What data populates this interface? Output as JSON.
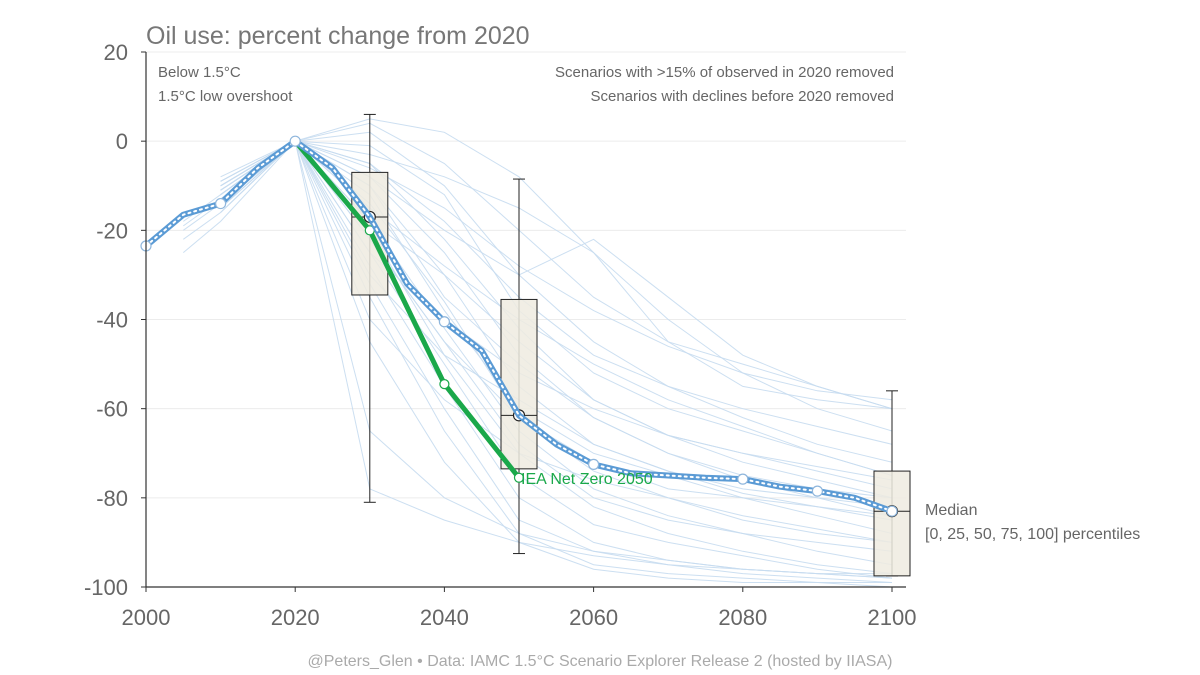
{
  "chart_data": {
    "type": "line",
    "title": "Oil use: percent change from 2020",
    "xlim": [
      2000,
      2100
    ],
    "ylim": [
      -100,
      20
    ],
    "x_ticks": [
      "2000",
      "2020",
      "2040",
      "2060",
      "2080",
      "2100"
    ],
    "y_ticks": [
      "20",
      "0",
      "-20",
      "-40",
      "-60",
      "-80",
      "-100"
    ],
    "grid": "horizontal",
    "notes_left": [
      "Below 1.5°C",
      "1.5°C low overshoot"
    ],
    "notes_right": [
      "Scenarios with >15% of observed in 2020 removed",
      "Scenarios with declines before 2020 removed"
    ],
    "median_label": "Median",
    "percentile_label": "[0, 25, 50, 75, 100] percentiles",
    "credit": "@Peters_Glen  •  Data: IAMC 1.5°C Scenario Explorer Release 2 (hosted by IIASA)",
    "colors": {
      "median": "#5b9bd5",
      "iea": "#1aa84a",
      "scenarios": "#c6dcf0",
      "box": "#efebe1"
    },
    "median": {
      "x": [
        2000,
        2005,
        2010,
        2015,
        2020,
        2025,
        2030,
        2035,
        2040,
        2045,
        2050,
        2055,
        2060,
        2065,
        2070,
        2075,
        2080,
        2085,
        2090,
        2095,
        2100
      ],
      "y": [
        -23.5,
        -16.5,
        -14,
        -6,
        0,
        -6,
        -17,
        -32,
        -40.5,
        -47,
        -61.5,
        -68,
        -72.5,
        -74.5,
        -75,
        -75.5,
        -75.8,
        -77.5,
        -78.5,
        -80,
        -83
      ]
    },
    "iea_net_zero": {
      "name": "IEA Net Zero 2050",
      "x": [
        2020,
        2030,
        2040,
        2050
      ],
      "y": [
        0,
        -20,
        -54.5,
        -75.5
      ]
    },
    "boxes": [
      {
        "x": 2030,
        "min": -81,
        "q1": -34.5,
        "median": -17,
        "q3": -7,
        "max": 6,
        "mean": -17
      },
      {
        "x": 2050,
        "min": -92.5,
        "q1": -73.5,
        "median": -61.5,
        "q3": -35.5,
        "max": -8.5,
        "mean": -61.5
      },
      {
        "x": 2100,
        "min": -97.5,
        "q1": -97.5,
        "median": -83,
        "q3": -74,
        "max": -56,
        "mean": -83
      }
    ],
    "scenarios": [
      {
        "x": [
          2005,
          2010,
          2020,
          2030,
          2040,
          2050,
          2060,
          2070,
          2080,
          2090,
          2100
        ],
        "y": [
          -25,
          -18,
          0,
          5,
          2,
          -8,
          -25,
          -45,
          -55,
          -58,
          -60
        ]
      },
      {
        "x": [
          2010,
          2020,
          2030,
          2040,
          2050,
          2060,
          2070,
          2080,
          2090,
          2100
        ],
        "y": [
          -12,
          0,
          4,
          -5,
          -20,
          -35,
          -45,
          -50,
          -55,
          -60
        ]
      },
      {
        "x": [
          2005,
          2010,
          2020,
          2030,
          2040,
          2050,
          2060,
          2070,
          2080,
          2090,
          2100
        ],
        "y": [
          -20,
          -14,
          0,
          2,
          -10,
          -30,
          -45,
          -55,
          -62,
          -68,
          -72
        ]
      },
      {
        "x": [
          2010,
          2020,
          2030,
          2040,
          2050,
          2060,
          2070,
          2080,
          2090,
          2100
        ],
        "y": [
          -10,
          0,
          -1,
          -12,
          -38,
          -52,
          -60,
          -65,
          -70,
          -75
        ]
      },
      {
        "x": [
          2005,
          2010,
          2020,
          2030,
          2040,
          2050,
          2060,
          2070,
          2080,
          2090,
          2100
        ],
        "y": [
          -18,
          -12,
          0,
          -5,
          -22,
          -42,
          -58,
          -66,
          -70,
          -73,
          -76
        ]
      },
      {
        "x": [
          2010,
          2020,
          2030,
          2040,
          2050,
          2060,
          2070,
          2080,
          2090,
          2100
        ],
        "y": [
          -9,
          0,
          -8,
          -25,
          -48,
          -62,
          -70,
          -75,
          -78,
          -80
        ]
      },
      {
        "x": [
          2010,
          2020,
          2030,
          2040,
          2050,
          2060,
          2070,
          2080,
          2090,
          2100
        ],
        "y": [
          -15,
          0,
          -10,
          -30,
          -55,
          -68,
          -74,
          -78,
          -80,
          -82
        ]
      },
      {
        "x": [
          2010,
          2020,
          2030,
          2040,
          2050,
          2060,
          2070,
          2080,
          2090,
          2100
        ],
        "y": [
          -11,
          0,
          -12,
          -38,
          -60,
          -70,
          -75,
          -80,
          -84,
          -88
        ]
      },
      {
        "x": [
          2005,
          2010,
          2020,
          2030,
          2040,
          2050,
          2060,
          2070,
          2080,
          2090,
          2100
        ],
        "y": [
          -22,
          -16,
          0,
          -14,
          -36,
          -62,
          -74,
          -80,
          -85,
          -88,
          -90
        ]
      },
      {
        "x": [
          2010,
          2020,
          2030,
          2040,
          2050,
          2060,
          2070,
          2080,
          2090,
          2100
        ],
        "y": [
          -13,
          0,
          -18,
          -42,
          -65,
          -78,
          -84,
          -88,
          -92,
          -95
        ]
      },
      {
        "x": [
          2010,
          2020,
          2030,
          2040,
          2050,
          2060,
          2070,
          2080,
          2090,
          2100
        ],
        "y": [
          -8,
          0,
          -20,
          -48,
          -70,
          -82,
          -88,
          -92,
          -95,
          -97
        ]
      },
      {
        "x": [
          2005,
          2010,
          2020,
          2030,
          2040,
          2050,
          2060,
          2070,
          2080,
          2090,
          2100
        ],
        "y": [
          -19,
          -13,
          0,
          -22,
          -45,
          -68,
          -80,
          -85,
          -88,
          -90,
          -92
        ]
      },
      {
        "x": [
          2010,
          2020,
          2030,
          2040,
          2050,
          2060,
          2070,
          2080,
          2090,
          2100
        ],
        "y": [
          -12,
          0,
          -25,
          -50,
          -75,
          -86,
          -90,
          -93,
          -96,
          -98
        ]
      },
      {
        "x": [
          2010,
          2020,
          2030,
          2040,
          2050,
          2060,
          2070,
          2080,
          2090,
          2100
        ],
        "y": [
          -10,
          0,
          -28,
          -55,
          -80,
          -90,
          -94,
          -96,
          -97,
          -98
        ]
      },
      {
        "x": [
          2010,
          2020,
          2030,
          2040,
          2050,
          2060,
          2070,
          2080,
          2090,
          2100
        ],
        "y": [
          -14,
          0,
          -32,
          -60,
          -85,
          -92,
          -95,
          -97,
          -98,
          -99
        ]
      },
      {
        "x": [
          2010,
          2020,
          2030,
          2040,
          2050,
          2060,
          2070,
          2080,
          2090,
          2100
        ],
        "y": [
          -9,
          0,
          -35,
          -65,
          -88,
          -95,
          -97,
          -98,
          -99,
          -99
        ]
      },
      {
        "x": [
          2010,
          2020,
          2030,
          2040,
          2050,
          2060,
          2070,
          2080,
          2090,
          2100
        ],
        "y": [
          -16,
          0,
          -45,
          -72,
          -90,
          -96,
          -98,
          -99,
          -99,
          -100
        ]
      },
      {
        "x": [
          2010,
          2020,
          2030,
          2040,
          2050,
          2060,
          2070,
          2080,
          2090,
          2100
        ],
        "y": [
          -11,
          0,
          -65,
          -80,
          -88,
          -92,
          -94,
          -96,
          -97,
          -98
        ]
      },
      {
        "x": [
          2010,
          2020,
          2030,
          2040,
          2050,
          2060,
          2070,
          2080,
          2090,
          2100
        ],
        "y": [
          -13,
          0,
          -78,
          -85,
          -90,
          -93,
          -95,
          -96,
          -97,
          -97
        ]
      },
      {
        "x": [
          2010,
          2020,
          2030,
          2040,
          2050,
          2060,
          2070,
          2080,
          2090,
          2100
        ],
        "y": [
          -10,
          0,
          -5,
          -18,
          -35,
          -48,
          -55,
          -60,
          -64,
          -68
        ]
      },
      {
        "x": [
          2010,
          2020,
          2030,
          2040,
          2050,
          2060,
          2070,
          2080,
          2090,
          2100
        ],
        "y": [
          -12,
          0,
          -15,
          -28,
          -40,
          -50,
          -58,
          -64,
          -70,
          -75
        ]
      },
      {
        "x": [
          2010,
          2020,
          2030,
          2040,
          2050,
          2060,
          2070,
          2080,
          2090,
          2100
        ],
        "y": [
          -15,
          0,
          -6,
          -15,
          -28,
          -38,
          -46,
          -52,
          -56,
          -58
        ]
      },
      {
        "x": [
          2010,
          2020,
          2030,
          2040,
          2050,
          2060,
          2070,
          2080,
          2090,
          2100
        ],
        "y": [
          -9,
          0,
          -25,
          -40,
          -52,
          -60,
          -66,
          -70,
          -74,
          -78
        ]
      },
      {
        "x": [
          2010,
          2020,
          2030,
          2040,
          2050,
          2060,
          2070,
          2080,
          2090,
          2100
        ],
        "y": [
          -14,
          0,
          -30,
          -48,
          -58,
          -68,
          -74,
          -79,
          -82,
          -85
        ]
      },
      {
        "x": [
          2010,
          2020,
          2030,
          2040,
          2050,
          2060,
          2070,
          2080,
          2090,
          2100
        ],
        "y": [
          -11,
          0,
          -10,
          -35,
          -50,
          -62,
          -70,
          -76,
          -80,
          -84
        ]
      },
      {
        "x": [
          2010,
          2020,
          2030,
          2040,
          2050,
          2060,
          2070,
          2080,
          2090,
          2100
        ],
        "y": [
          -12,
          0,
          -40,
          -58,
          -70,
          -76,
          -80,
          -84,
          -87,
          -90
        ]
      },
      {
        "x": [
          2010,
          2020,
          2030,
          2040,
          2050,
          2060,
          2070,
          2080,
          2090,
          2100
        ],
        "y": [
          -10,
          0,
          -18,
          -30,
          -45,
          -58,
          -66,
          -72,
          -76,
          -80
        ]
      },
      {
        "x": [
          2010,
          2020,
          2030,
          2040,
          2050,
          2060,
          2070,
          2080,
          2090,
          2100
        ],
        "y": [
          -13,
          0,
          -8,
          -20,
          -30,
          -22,
          -35,
          -48,
          -55,
          -60
        ]
      },
      {
        "x": [
          2010,
          2020,
          2030,
          2040,
          2050,
          2060,
          2070,
          2080,
          2090,
          2100
        ],
        "y": [
          -11,
          0,
          -3,
          -8,
          -15,
          -25,
          -40,
          -52,
          -60,
          -65
        ]
      },
      {
        "x": [
          2010,
          2020,
          2030,
          2040,
          2050,
          2060,
          2070,
          2080,
          2090,
          2100
        ],
        "y": [
          -15,
          0,
          -22,
          -45,
          -62,
          -72,
          -78,
          -80,
          -82,
          -84
        ]
      }
    ]
  }
}
